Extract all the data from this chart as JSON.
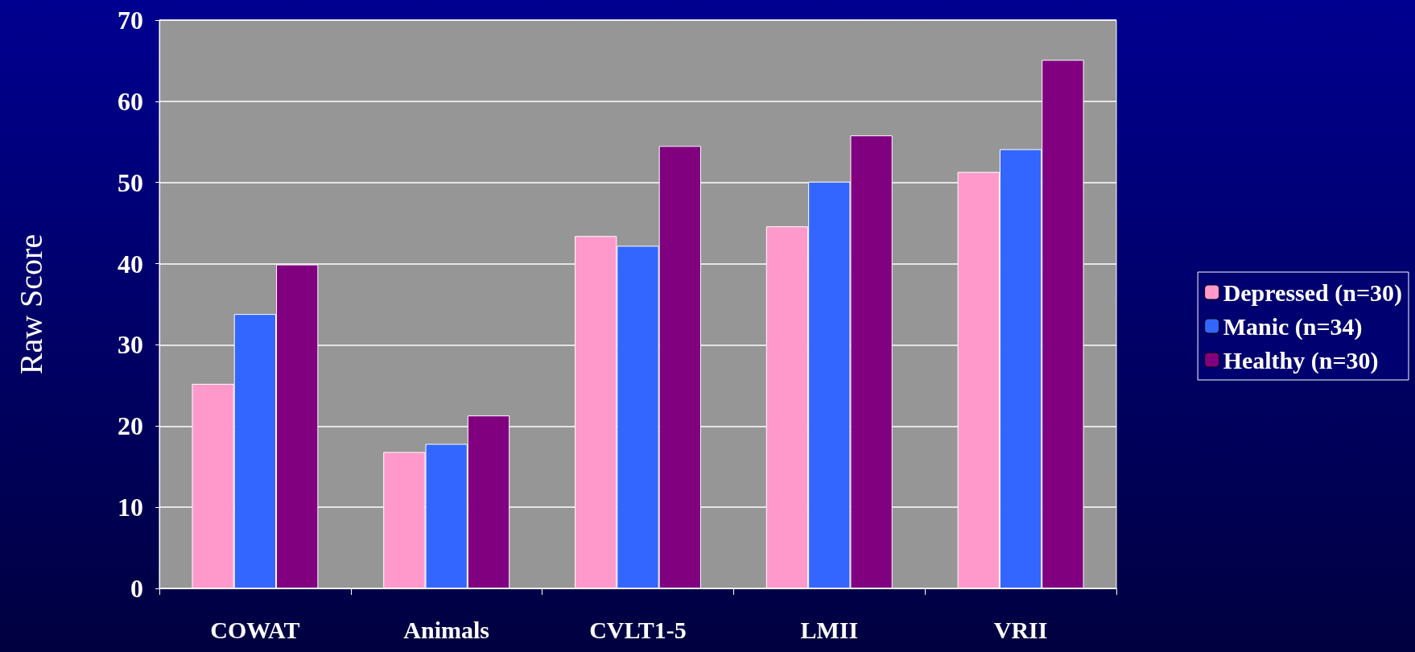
{
  "chart_data": {
    "type": "bar",
    "ylabel": "Raw Score",
    "categories": [
      "COWAT",
      "Animals",
      "CVLT1-5",
      "LMII",
      "VRII"
    ],
    "series": [
      {
        "name": "Depressed (n=30)",
        "color": "#ff99cc",
        "values": [
          25.2,
          16.8,
          43.4,
          44.6,
          51.3
        ]
      },
      {
        "name": "Manic (n=34)",
        "color": "#3366ff",
        "values": [
          33.8,
          17.8,
          42.2,
          50.1,
          54.1
        ]
      },
      {
        "name": "Healthy (n=30)",
        "color": "#800080",
        "values": [
          39.9,
          21.3,
          54.5,
          55.8,
          65.1
        ]
      }
    ],
    "ylim": [
      0,
      70
    ],
    "yticks": [
      0,
      10,
      20,
      30,
      40,
      50,
      60,
      70
    ],
    "grid": "y",
    "legend": "right"
  }
}
